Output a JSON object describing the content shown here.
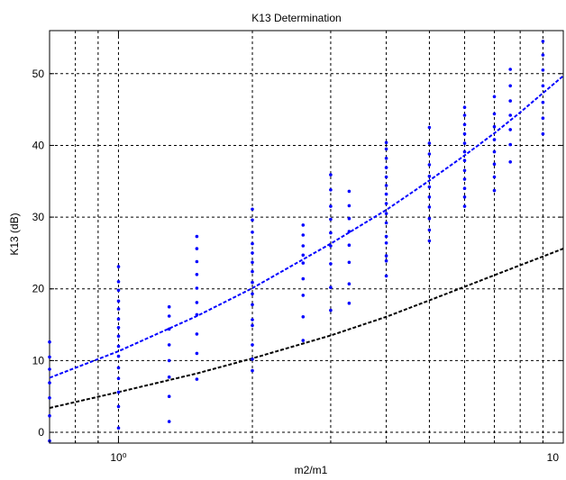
{
  "chart_data": {
    "type": "scatter",
    "title": "K13 Determination",
    "xlabel": "m2/m1",
    "ylabel": "K13 (dB)",
    "xscale": "log",
    "xlim": [
      0.7,
      10
    ],
    "ylim": [
      -1.5,
      56
    ],
    "grid": true,
    "x_ticks": [
      1,
      10
    ],
    "x_tick_labels": [
      "10⁰",
      "10"
    ],
    "y_ticks": [
      0,
      10,
      20,
      30,
      40,
      50
    ],
    "y_tick_labels": [
      "0",
      "10",
      "20",
      "30",
      "40",
      "50"
    ],
    "series": [
      {
        "type": "scatter",
        "color": "#0000ff",
        "points": [
          [
            0.7,
            -1.2
          ],
          [
            0.7,
            2.3
          ],
          [
            0.7,
            4.8
          ],
          [
            0.7,
            6.9
          ],
          [
            0.7,
            8.8
          ],
          [
            0.7,
            10.5
          ],
          [
            0.7,
            12.6
          ],
          [
            1.0,
            0.6
          ],
          [
            1.0,
            3.6
          ],
          [
            1.0,
            5.6
          ],
          [
            1.0,
            7.5
          ],
          [
            1.0,
            9.0
          ],
          [
            1.0,
            10.6
          ],
          [
            1.0,
            12.0
          ],
          [
            1.0,
            13.4
          ],
          [
            1.0,
            14.6
          ],
          [
            1.0,
            15.8
          ],
          [
            1.0,
            17.2
          ],
          [
            1.0,
            18.3
          ],
          [
            1.0,
            19.8
          ],
          [
            1.0,
            21.0
          ],
          [
            1.0,
            23.1
          ],
          [
            1.3,
            1.5
          ],
          [
            1.3,
            5.0
          ],
          [
            1.3,
            7.7
          ],
          [
            1.3,
            10.0
          ],
          [
            1.3,
            12.2
          ],
          [
            1.3,
            14.4
          ],
          [
            1.3,
            16.2
          ],
          [
            1.3,
            17.5
          ],
          [
            1.5,
            7.4
          ],
          [
            1.5,
            11.0
          ],
          [
            1.5,
            13.7
          ],
          [
            1.5,
            16.4
          ],
          [
            1.5,
            18.1
          ],
          [
            1.5,
            20.1
          ],
          [
            1.5,
            22.0
          ],
          [
            1.5,
            23.8
          ],
          [
            1.5,
            25.6
          ],
          [
            1.5,
            27.3
          ],
          [
            2.0,
            8.6
          ],
          [
            2.0,
            10.2
          ],
          [
            2.0,
            12.2
          ],
          [
            2.0,
            14.9
          ],
          [
            2.0,
            15.7
          ],
          [
            2.0,
            17.8
          ],
          [
            2.0,
            19.3
          ],
          [
            2.0,
            20.9
          ],
          [
            2.0,
            22.4
          ],
          [
            2.0,
            23.7
          ],
          [
            2.0,
            25.0
          ],
          [
            2.0,
            26.3
          ],
          [
            2.0,
            27.9
          ],
          [
            2.0,
            29.6
          ],
          [
            2.0,
            31.1
          ],
          [
            2.6,
            12.8
          ],
          [
            2.6,
            16.1
          ],
          [
            2.6,
            19.1
          ],
          [
            2.6,
            21.4
          ],
          [
            2.6,
            23.6
          ],
          [
            2.6,
            24.7
          ],
          [
            2.6,
            26.0
          ],
          [
            2.6,
            27.5
          ],
          [
            2.6,
            28.9
          ],
          [
            3.0,
            17.0
          ],
          [
            3.0,
            20.2
          ],
          [
            3.0,
            23.5
          ],
          [
            3.0,
            26.0
          ],
          [
            3.0,
            27.8
          ],
          [
            3.0,
            29.7
          ],
          [
            3.0,
            31.5
          ],
          [
            3.0,
            33.8
          ],
          [
            3.0,
            35.9
          ],
          [
            3.3,
            18.0
          ],
          [
            3.3,
            20.7
          ],
          [
            3.3,
            23.7
          ],
          [
            3.3,
            26.1
          ],
          [
            3.3,
            28.0
          ],
          [
            3.3,
            29.8
          ],
          [
            3.3,
            31.6
          ],
          [
            3.3,
            33.6
          ],
          [
            4.0,
            21.8
          ],
          [
            4.0,
            23.9
          ],
          [
            4.0,
            24.6
          ],
          [
            4.0,
            26.4
          ],
          [
            4.0,
            27.3
          ],
          [
            4.0,
            29.2
          ],
          [
            4.0,
            30.5
          ],
          [
            4.0,
            31.9
          ],
          [
            4.0,
            33.2
          ],
          [
            4.0,
            34.4
          ],
          [
            4.0,
            35.6
          ],
          [
            4.0,
            36.9
          ],
          [
            4.0,
            38.2
          ],
          [
            4.0,
            39.5
          ],
          [
            4.0,
            40.4
          ],
          [
            5.0,
            26.7
          ],
          [
            5.0,
            28.2
          ],
          [
            5.0,
            29.8
          ],
          [
            5.0,
            31.4
          ],
          [
            5.0,
            32.8
          ],
          [
            5.0,
            34.2
          ],
          [
            5.0,
            35.7
          ],
          [
            5.0,
            37.3
          ],
          [
            5.0,
            38.8
          ],
          [
            5.0,
            40.3
          ],
          [
            5.0,
            42.5
          ],
          [
            6.0,
            31.5
          ],
          [
            6.0,
            32.8
          ],
          [
            6.0,
            34.0
          ],
          [
            6.0,
            35.3
          ],
          [
            6.0,
            36.5
          ],
          [
            6.0,
            37.9
          ],
          [
            6.0,
            39.1
          ],
          [
            6.0,
            40.3
          ],
          [
            6.0,
            41.6
          ],
          [
            6.0,
            42.9
          ],
          [
            6.0,
            44.2
          ],
          [
            6.0,
            45.3
          ],
          [
            7.0,
            33.7
          ],
          [
            7.0,
            35.6
          ],
          [
            7.0,
            37.4
          ],
          [
            7.0,
            39.1
          ],
          [
            7.0,
            40.8
          ],
          [
            7.0,
            42.6
          ],
          [
            7.0,
            44.4
          ],
          [
            7.0,
            46.8
          ],
          [
            7.6,
            37.7
          ],
          [
            7.6,
            40.1
          ],
          [
            7.6,
            42.2
          ],
          [
            7.6,
            44.2
          ],
          [
            7.6,
            46.2
          ],
          [
            7.6,
            48.3
          ],
          [
            7.6,
            50.6
          ],
          [
            9.0,
            41.6
          ],
          [
            9.0,
            43.8
          ],
          [
            9.0,
            46.0
          ],
          [
            9.0,
            48.3
          ],
          [
            9.0,
            50.5
          ],
          [
            9.0,
            52.6
          ],
          [
            9.0,
            54.5
          ]
        ]
      },
      {
        "type": "line",
        "style": "dashed",
        "color": "#0000ff",
        "x": [
          0.7,
          1.0,
          1.5,
          2.0,
          3.0,
          4.0,
          5.0,
          6.0,
          7.0,
          8.0,
          10.0
        ],
        "y": [
          7.6,
          11.3,
          16.2,
          20.1,
          26.3,
          31.0,
          35.1,
          38.6,
          41.7,
          44.6,
          49.7
        ]
      },
      {
        "type": "line",
        "style": "dashed",
        "color": "#000000",
        "x": [
          0.7,
          1.0,
          1.5,
          2.0,
          3.0,
          4.0,
          5.0,
          6.0,
          7.0,
          8.0,
          10.0
        ],
        "y": [
          3.4,
          5.6,
          8.2,
          10.3,
          13.5,
          16.1,
          18.4,
          20.3,
          21.9,
          23.3,
          25.6
        ]
      }
    ]
  }
}
